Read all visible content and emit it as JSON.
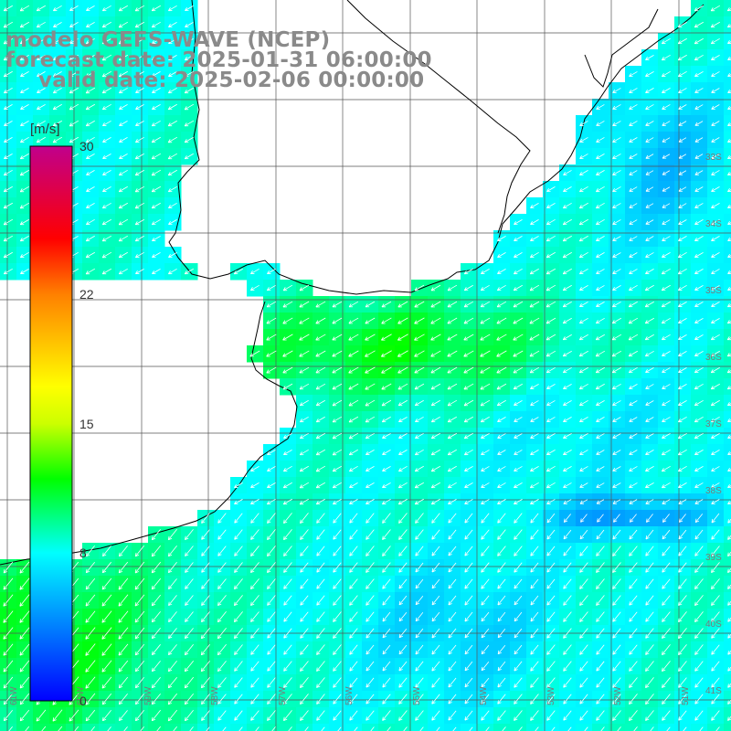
{
  "title": {
    "model_line": "modelo GEFS-WAVE (NCEP)",
    "forecast_line": "forecast date: 2025-01-31 06:00:00",
    "valid_line": "valid date: 2025-02-06 00:00:00"
  },
  "colorbar": {
    "unit_label": "[m/s]",
    "min": 0,
    "max": 30,
    "ticks": [
      {
        "label": "30",
        "value": 30
      },
      {
        "label": "22",
        "value": 22
      },
      {
        "label": "15",
        "value": 15
      },
      {
        "label": "8",
        "value": 8
      },
      {
        "label": "0",
        "value": 0
      }
    ],
    "stops": [
      {
        "value": 0,
        "color": "#0000ff"
      },
      {
        "value": 8,
        "color": "#00ffff"
      },
      {
        "value": 12,
        "color": "#00ff00"
      },
      {
        "value": 15,
        "color": "#ccff00"
      },
      {
        "value": 17,
        "color": "#ffff00"
      },
      {
        "value": 22,
        "color": "#ff8000"
      },
      {
        "value": 25,
        "color": "#ff0000"
      },
      {
        "value": 30,
        "color": "#c0008c"
      }
    ]
  },
  "grid": {
    "lat_labels": [
      "33S",
      "34S",
      "35S",
      "36S",
      "37S",
      "38S",
      "39S",
      "40S",
      "41S"
    ],
    "lon_labels": [
      "61W",
      "60W",
      "59W",
      "58W",
      "57W",
      "56W",
      "55W",
      "54W",
      "53W",
      "52W",
      "51W"
    ]
  },
  "wind_field": {
    "variable": "wind speed (m/s) with direction arrows",
    "dominant_flow": "from east / north-east toward west / south-west",
    "speed_range_m_s": [
      2,
      12
    ],
    "wave_field_note": "shading over ocean only; land left blank with coastline outline"
  },
  "colors": {
    "land": "#ffffff",
    "grid_line": "#555555",
    "coastline": "#000000",
    "arrow": "#ffffff",
    "title_text": "#8a8a8a"
  }
}
